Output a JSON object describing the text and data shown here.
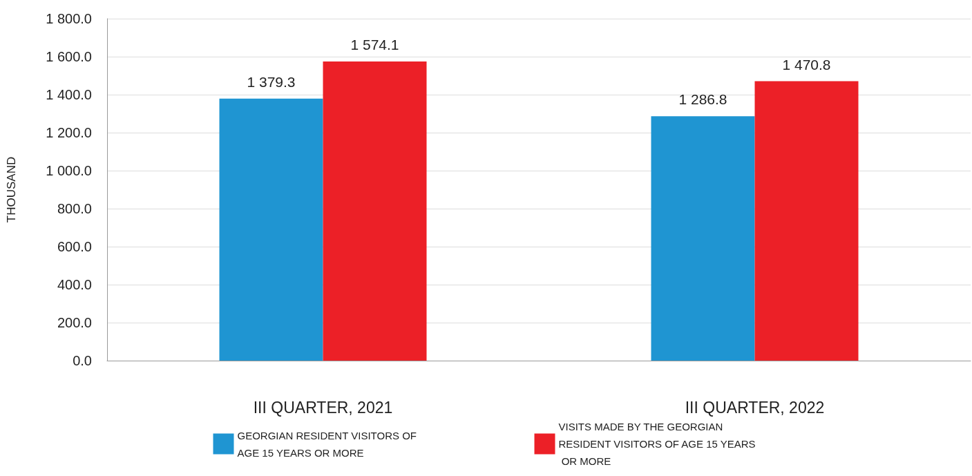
{
  "chart_data": {
    "type": "bar",
    "ylabel": "THOUSAND",
    "categories": [
      "III QUARTER, 2021",
      "III QUARTER, 2022"
    ],
    "series": [
      {
        "name": "GEORGIAN RESIDENT VISITORS OF AGE 15 YEARS OR MORE",
        "color": "#1f95d2",
        "values": [
          1379.3,
          1286.8
        ],
        "value_labels": [
          "1 379.3",
          "1 286.8"
        ]
      },
      {
        "name": "VISITS MADE BY THE GEORGIAN RESIDENT VISITORS OF AGE 15 YEARS OR MORE",
        "color": "#ec2027",
        "values": [
          1574.1,
          1470.8
        ],
        "value_labels": [
          "1 574.1",
          "1 470.8"
        ]
      }
    ],
    "ylim": [
      0,
      1800
    ],
    "yticks": [
      {
        "value": 0,
        "label": "0.0"
      },
      {
        "value": 200,
        "label": "200.0"
      },
      {
        "value": 400,
        "label": "400.0"
      },
      {
        "value": 600,
        "label": "600.0"
      },
      {
        "value": 800,
        "label": "800.0"
      },
      {
        "value": 1000,
        "label": "1 000.0"
      },
      {
        "value": 1200,
        "label": "1 200.0"
      },
      {
        "value": 1400,
        "label": "1 400.0"
      },
      {
        "value": 1600,
        "label": "1 600.0"
      },
      {
        "value": 1800,
        "label": "1 800.0"
      }
    ],
    "grid": "y",
    "legend": "bottom"
  }
}
